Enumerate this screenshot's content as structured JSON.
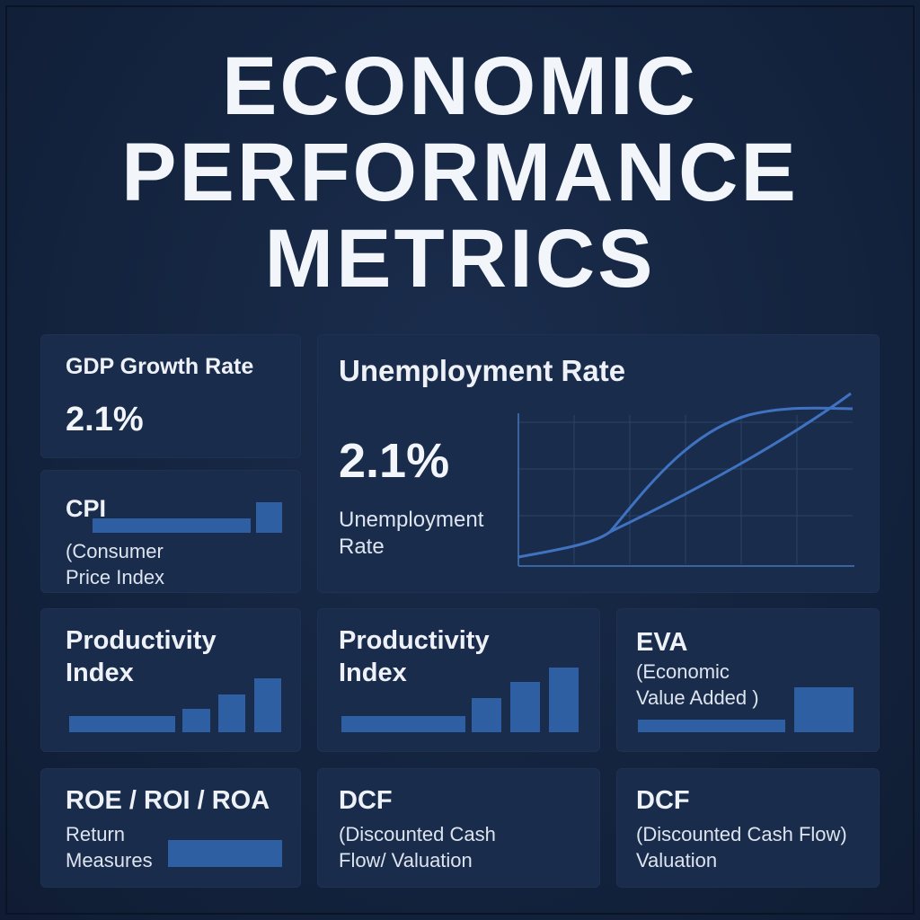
{
  "title_lines": [
    "ECONOMIC",
    "PERFORMANCE",
    "METRICS"
  ],
  "cards": {
    "gdp": {
      "title": "GDP Growth Rate",
      "value": "2.1%"
    },
    "cpi": {
      "title": "CPI",
      "sub1": "(Consumer",
      "sub2": "Price Index",
      "bar_values": [
        1.0,
        0.28
      ]
    },
    "unemployment": {
      "title": "Unemployment Rate",
      "value": "2.1%",
      "label1": "Unemployment",
      "label2": "Rate"
    },
    "productivity1": {
      "title1": "Productivity",
      "title2": "Index",
      "bar_values": [
        0.3,
        0.45,
        0.7,
        1.0
      ]
    },
    "productivity2": {
      "title1": "Productivity",
      "title2": "Index",
      "bar_values": [
        0.3,
        0.55,
        0.8,
        1.0
      ]
    },
    "eva": {
      "title": "EVA",
      "sub1": "(Economic",
      "sub2": "Value Added )",
      "bar_values": [
        0.35,
        1.0
      ]
    },
    "roe": {
      "title": "ROE / ROI / ROA",
      "sub1": "Return",
      "sub2": "Measures"
    },
    "dcf1": {
      "title": "DCF",
      "sub1": "(Discounted Cash",
      "sub2": "Flow/ Valuation"
    },
    "dcf2": {
      "title": "DCF",
      "sub1": "(Discounted Cash Flow)",
      "sub2": "Valuation"
    }
  },
  "colors": {
    "background": "#14243f",
    "card": "#1a2c4b",
    "accent": "#2f5fa3",
    "line": "#3f72c0"
  }
}
